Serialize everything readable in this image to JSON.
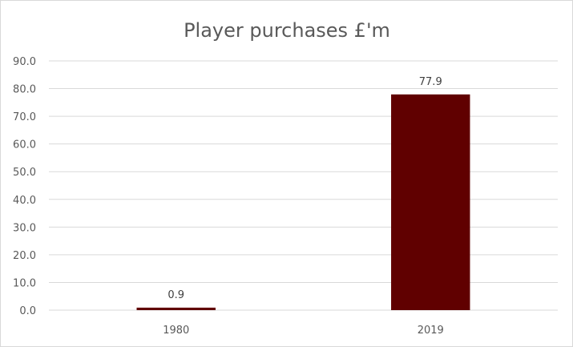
{
  "chart_data": {
    "type": "bar",
    "title": "Player purchases £'m",
    "categories": [
      "1980",
      "2019"
    ],
    "values": [
      0.9,
      77.9
    ],
    "value_labels": [
      "0.9",
      "77.9"
    ],
    "ylim": [
      0,
      90
    ],
    "yticks": [
      "0.0",
      "10.0",
      "20.0",
      "30.0",
      "40.0",
      "50.0",
      "60.0",
      "70.0",
      "80.0",
      "90.0"
    ],
    "grid": true,
    "legend": "none",
    "bar_color": "#600000"
  }
}
